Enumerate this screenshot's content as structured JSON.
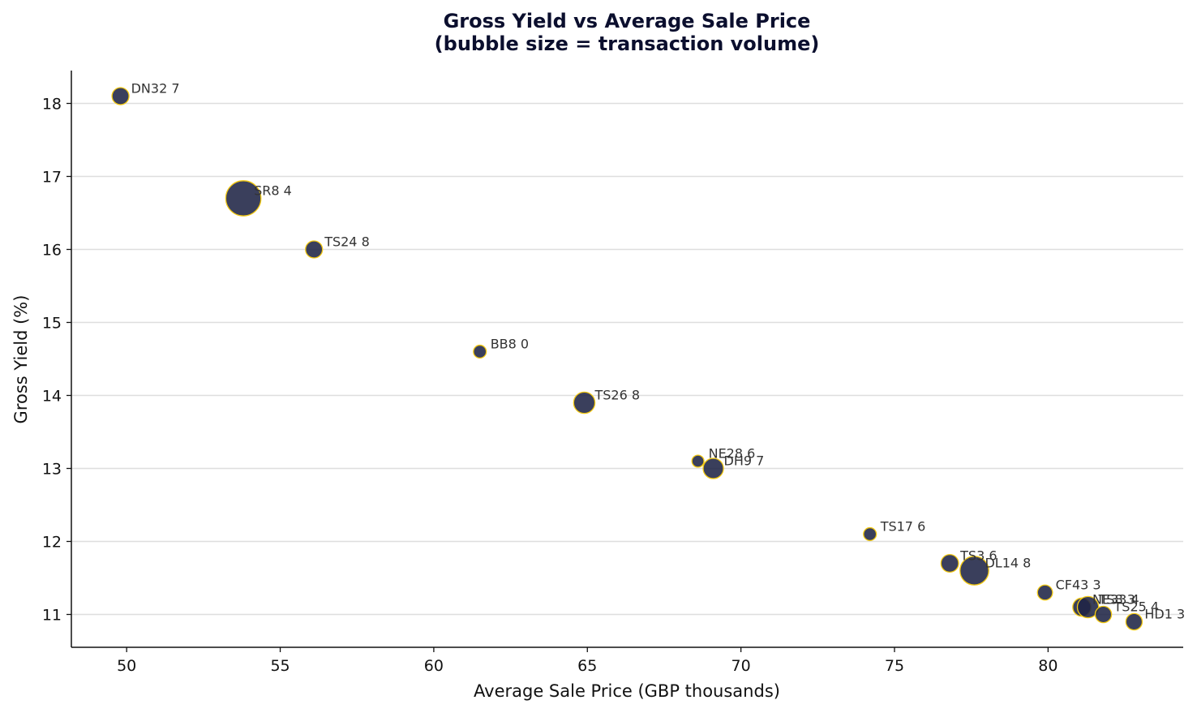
{
  "chart_data": {
    "type": "scatter",
    "title": "Gross Yield vs Average Sale Price",
    "subtitle": "(bubble size = transaction volume)",
    "xlabel": "Average Sale Price (GBP thousands)",
    "ylabel": "Gross Yield (%)",
    "xlim": [
      48.2,
      84.4
    ],
    "ylim": [
      10.55,
      18.45
    ],
    "xticks": [
      50,
      55,
      60,
      65,
      70,
      75,
      80
    ],
    "yticks": [
      11,
      12,
      13,
      14,
      15,
      16,
      17,
      18
    ],
    "grid": "horizontal",
    "colors": {
      "fill": "#1f2445",
      "edge": "#f2c811",
      "title": "#0b0f2e"
    },
    "points": [
      {
        "label": "DN32 7",
        "x": 49.8,
        "y": 18.1,
        "volume": 14
      },
      {
        "label": "SR8 4",
        "x": 53.8,
        "y": 16.7,
        "volume": 60
      },
      {
        "label": "TS24 8",
        "x": 56.1,
        "y": 16.0,
        "volume": 14
      },
      {
        "label": "BB8 0",
        "x": 61.5,
        "y": 14.6,
        "volume": 8
      },
      {
        "label": "TS26 8",
        "x": 64.9,
        "y": 13.9,
        "volume": 22
      },
      {
        "label": "NE28 6",
        "x": 68.6,
        "y": 13.1,
        "volume": 7
      },
      {
        "label": "DH9 7",
        "x": 69.1,
        "y": 13.0,
        "volume": 20
      },
      {
        "label": "TS17 6",
        "x": 74.2,
        "y": 12.1,
        "volume": 8
      },
      {
        "label": "TS3 6",
        "x": 76.8,
        "y": 11.7,
        "volume": 15
      },
      {
        "label": "DL14 8",
        "x": 77.6,
        "y": 11.6,
        "volume": 40
      },
      {
        "label": "CF43 3",
        "x": 79.9,
        "y": 11.3,
        "volume": 11
      },
      {
        "label": "NE33 4",
        "x": 81.1,
        "y": 11.1,
        "volume": 16
      },
      {
        "label": "TS8 3",
        "x": 81.3,
        "y": 11.1,
        "volume": 22
      },
      {
        "label": "TS25 4",
        "x": 81.8,
        "y": 11.0,
        "volume": 13
      },
      {
        "label": "HD1 3",
        "x": 82.8,
        "y": 10.9,
        "volume": 13
      }
    ]
  }
}
